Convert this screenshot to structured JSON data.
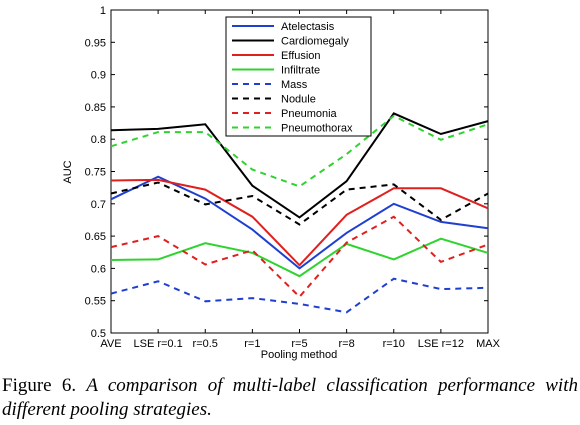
{
  "chart_data": {
    "type": "line",
    "title": "",
    "xlabel": "Pooling method",
    "ylabel": "AUC",
    "ylim": [
      0.5,
      1
    ],
    "yticks": [
      "0.5",
      "0.55",
      "0.6",
      "0.65",
      "0.7",
      "0.75",
      "0.8",
      "0.85",
      "0.9",
      "0.95",
      "1"
    ],
    "categories": [
      "AVE",
      "LSE r=0.1",
      "r=0.5",
      "r=1",
      "r=5",
      "r=8",
      "r=10",
      "LSE r=12",
      "MAX"
    ],
    "grid": false,
    "legend_position": "top-center",
    "series": [
      {
        "name": "Atelectasis",
        "color": "#1f3fd1",
        "dash": "solid",
        "values": [
          0.707,
          0.742,
          0.708,
          0.66,
          0.6,
          0.655,
          0.7,
          0.672,
          0.662
        ]
      },
      {
        "name": "Cardiomegaly",
        "color": "#000000",
        "dash": "solid",
        "values": [
          0.814,
          0.816,
          0.823,
          0.728,
          0.679,
          0.735,
          0.84,
          0.808,
          0.828
        ]
      },
      {
        "name": "Effusion",
        "color": "#e0201e",
        "dash": "solid",
        "values": [
          0.736,
          0.737,
          0.722,
          0.68,
          0.605,
          0.683,
          0.724,
          0.724,
          0.693
        ]
      },
      {
        "name": "Infiltrate",
        "color": "#2fd32f",
        "dash": "solid",
        "values": [
          0.613,
          0.614,
          0.639,
          0.624,
          0.588,
          0.638,
          0.614,
          0.646,
          0.624
        ]
      },
      {
        "name": "Mass",
        "color": "#1f3fd1",
        "dash": "dashed",
        "values": [
          0.561,
          0.58,
          0.549,
          0.554,
          0.545,
          0.532,
          0.584,
          0.568,
          0.57
        ]
      },
      {
        "name": "Nodule",
        "color": "#000000",
        "dash": "dashed",
        "values": [
          0.716,
          0.733,
          0.699,
          0.712,
          0.668,
          0.722,
          0.73,
          0.675,
          0.716
        ]
      },
      {
        "name": "Pneumonia",
        "color": "#e0201e",
        "dash": "dashed",
        "values": [
          0.633,
          0.65,
          0.606,
          0.628,
          0.556,
          0.64,
          0.68,
          0.61,
          0.637
        ]
      },
      {
        "name": "Pneumothorax",
        "color": "#2fd32f",
        "dash": "dashed",
        "values": [
          0.789,
          0.811,
          0.811,
          0.753,
          0.727,
          0.777,
          0.836,
          0.799,
          0.823
        ]
      }
    ]
  },
  "caption": {
    "label": "Figure 6.",
    "text": "A comparison of multi-label classification performance with different pooling strategies."
  }
}
